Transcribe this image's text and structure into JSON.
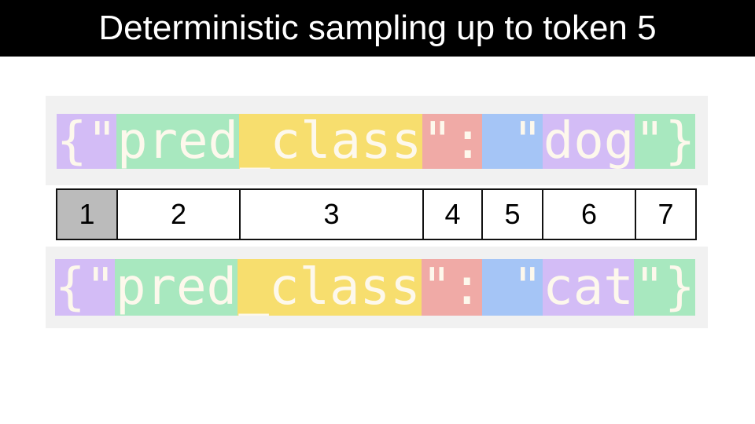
{
  "title": "Deterministic sampling up to token 5",
  "colors": {
    "purple": "#d3bcf6",
    "green": "#a8e8bf",
    "yellow": "#f7de6e",
    "red": "#f0aaa6",
    "blue": "#a5c5f6",
    "highlight": "#bbbbbb"
  },
  "top_tokens": [
    {
      "text": "{\"",
      "color": "purple"
    },
    {
      "text": "pred",
      "color": "green"
    },
    {
      "text": "_class",
      "color": "yellow"
    },
    {
      "text": "\":",
      "color": "red"
    },
    {
      "text": " \"",
      "color": "blue"
    },
    {
      "text": "dog",
      "color": "purple"
    },
    {
      "text": "\"}",
      "color": "green"
    }
  ],
  "bottom_tokens": [
    {
      "text": "{\"",
      "color": "purple"
    },
    {
      "text": "pred",
      "color": "green"
    },
    {
      "text": "_class",
      "color": "yellow"
    },
    {
      "text": "\":",
      "color": "red"
    },
    {
      "text": " \"",
      "color": "blue"
    },
    {
      "text": "cat",
      "color": "purple"
    },
    {
      "text": "\"}",
      "color": "green"
    }
  ],
  "indices": [
    "1",
    "2",
    "3",
    "4",
    "5",
    "6",
    "7"
  ],
  "highlighted_index": "1"
}
